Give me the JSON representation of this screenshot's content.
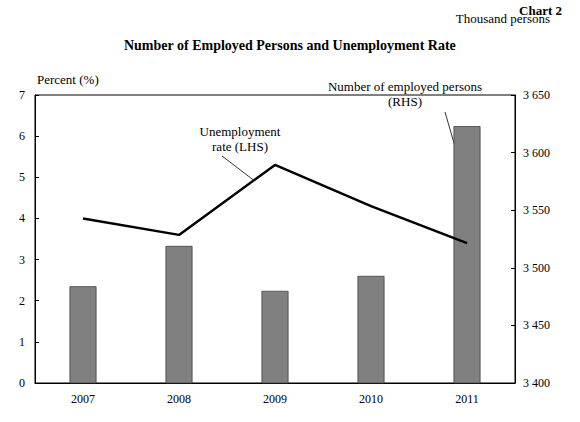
{
  "chart_data": {
    "type": "bar",
    "title": "Number of Employed Persons and Unemployment Rate",
    "subtitle": "Chart 2",
    "ylabel": "Percent (%)",
    "y2label": "Thousand persons",
    "categories": [
      "2007",
      "2008",
      "2009",
      "2010",
      "2011"
    ],
    "series": [
      {
        "name": "Number of employed persons\n(RHS)",
        "type": "bar",
        "axis": "y2",
        "color": "#808080",
        "values": [
          3484,
          3519,
          3480,
          3493,
          3623
        ]
      },
      {
        "name": "Unemployment\nrate (LHS)",
        "type": "line",
        "color": "#000000",
        "marker": "none",
        "line_style": "solid",
        "values": [
          4.0,
          3.6,
          5.3,
          4.3,
          3.4
        ]
      }
    ],
    "ylim": [
      0,
      7
    ],
    "yticks": [
      0,
      1,
      2,
      3,
      4,
      5,
      6,
      7
    ],
    "y2lim": [
      3400,
      3650
    ],
    "y2ticks": [
      {
        "value": 3400,
        "label": "3 400"
      },
      {
        "value": 3450,
        "label": "3 450"
      },
      {
        "value": 3500,
        "label": "3 500"
      },
      {
        "value": 3550,
        "label": "3 550"
      },
      {
        "value": 3600,
        "label": "3 600"
      },
      {
        "value": 3650,
        "label": "3 650"
      }
    ],
    "grid": false
  }
}
